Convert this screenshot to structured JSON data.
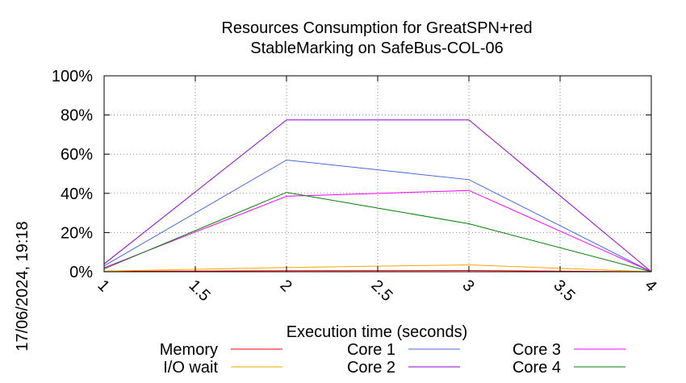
{
  "chart_data": {
    "type": "line",
    "title_lines": [
      "Resources Consumption for GreatSPN+red",
      "StableMarking on SafeBus-COL-06"
    ],
    "xlabel": "Execution time (seconds)",
    "ylabel": "",
    "xlim": [
      1,
      4
    ],
    "ylim": [
      0,
      100
    ],
    "x_ticks": [
      "1",
      "1.5",
      "2",
      "2.5",
      "3",
      "3.5",
      "4"
    ],
    "y_ticks": [
      "0%",
      "20%",
      "40%",
      "60%",
      "80%",
      "100%"
    ],
    "grid": true,
    "legend_position": "bottom",
    "timestamp": "17/06/2024, 19:18",
    "series": [
      {
        "name": "Memory",
        "color": "#ff0000",
        "x": [
          1,
          2,
          3,
          4
        ],
        "y": [
          0.2,
          0.5,
          0.6,
          0
        ]
      },
      {
        "name": "I/O wait",
        "color": "#ffa500",
        "x": [
          1,
          2,
          3,
          4
        ],
        "y": [
          0.3,
          2.2,
          3.5,
          0
        ]
      },
      {
        "name": "Core 1",
        "color": "#4169e1",
        "x": [
          1,
          2,
          3,
          4
        ],
        "y": [
          3,
          57,
          47,
          0
        ]
      },
      {
        "name": "Core 2",
        "color": "#9400d3",
        "x": [
          1,
          2,
          3,
          4
        ],
        "y": [
          4,
          77.5,
          77.5,
          0
        ]
      },
      {
        "name": "Core 3",
        "color": "#ff00ff",
        "x": [
          1,
          2,
          3,
          4
        ],
        "y": [
          2,
          38.5,
          41.5,
          0
        ]
      },
      {
        "name": "Core 4",
        "color": "#008000",
        "x": [
          1,
          2,
          3,
          4
        ],
        "y": [
          1.5,
          40.5,
          24.5,
          0
        ]
      }
    ]
  }
}
